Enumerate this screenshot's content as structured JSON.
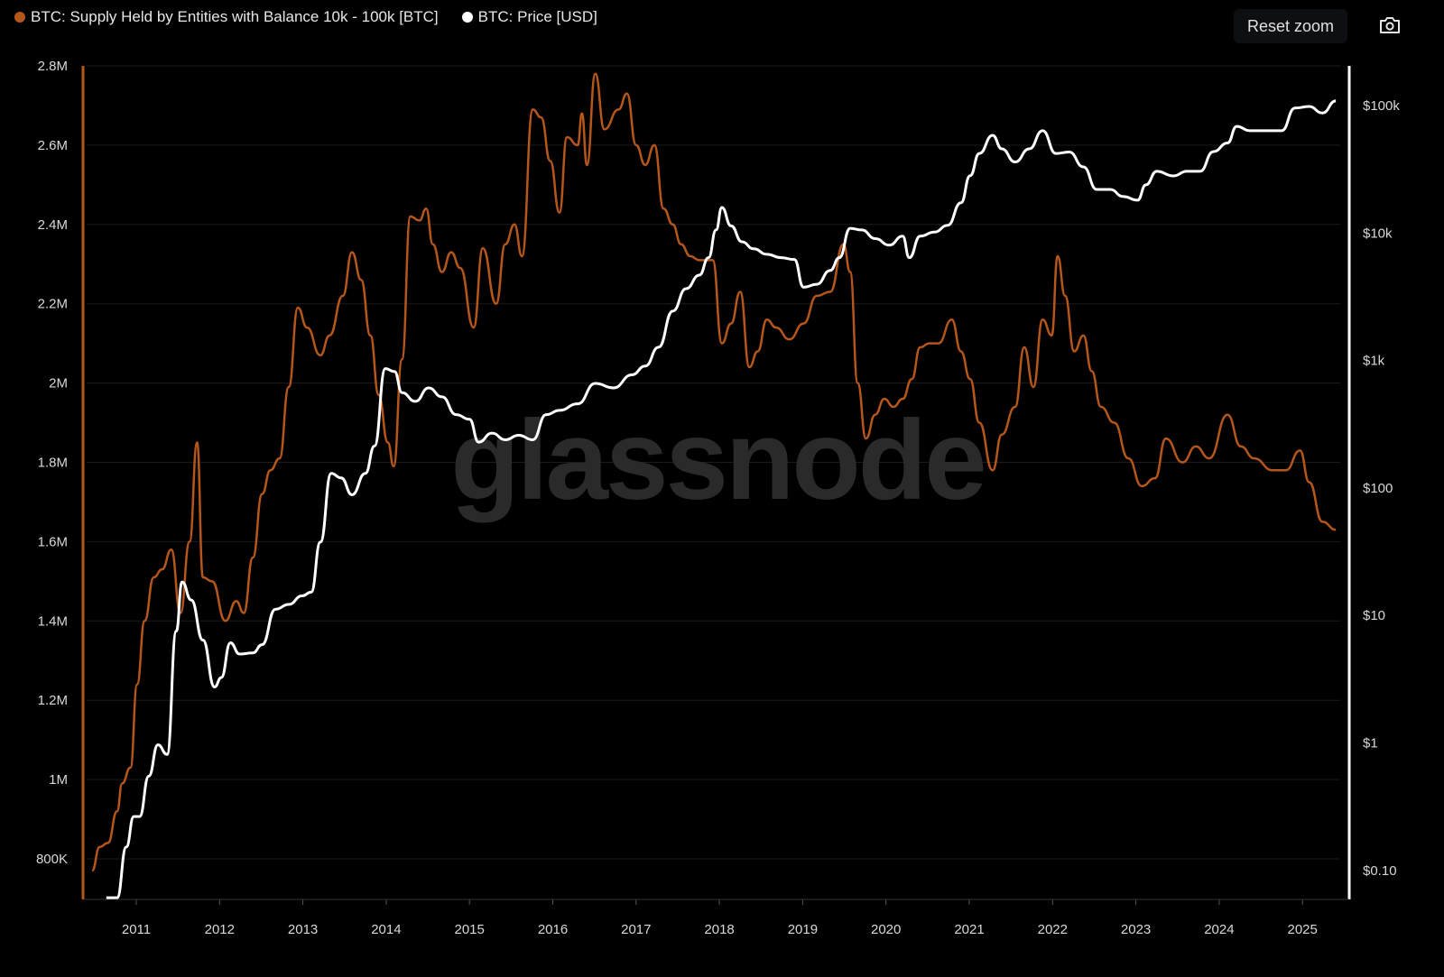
{
  "legend": [
    {
      "label": "BTC: Supply Held by Entities with Balance 10k - 100k [BTC]",
      "color": "#b5561a"
    },
    {
      "label": "BTC: Price [USD]",
      "color": "#ffffff"
    }
  ],
  "toolbar": {
    "reset_zoom_label": "Reset zoom",
    "camera_icon": "camera-icon"
  },
  "watermark": "glassnode",
  "chart_data": {
    "type": "line",
    "grid": true,
    "legend_placement": "top-left",
    "x_ticks": [
      "2011",
      "2012",
      "2013",
      "2014",
      "2015",
      "2016",
      "2017",
      "2018",
      "2019",
      "2020",
      "2021",
      "2022",
      "2023",
      "2024",
      "2025"
    ],
    "xlim": [
      2010.45,
      2025.45
    ],
    "left_axis": {
      "scale": "linear",
      "ylim": [
        700000,
        2820000
      ],
      "ticks": [
        800000,
        1000000,
        1200000,
        1400000,
        1600000,
        1800000,
        2000000,
        2200000,
        2400000,
        2600000,
        2800000
      ],
      "tick_labels": [
        "800K",
        "1M",
        "1.2M",
        "1.4M",
        "1.6M",
        "1.8M",
        "2M",
        "2.2M",
        "2.4M",
        "2.6M",
        "2.8M"
      ]
    },
    "right_axis": {
      "scale": "log",
      "ticks": [
        0.1,
        1,
        10,
        100,
        1000,
        10000,
        100000
      ],
      "tick_labels": [
        "$0.10",
        "$1",
        "$10",
        "$100",
        "$1k",
        "$10k",
        "$100k"
      ]
    },
    "series": [
      {
        "name": "BTC: Supply Held by Entities with Balance 10k - 100k [BTC]",
        "axis": "left",
        "color": "#b5561a",
        "points": [
          [
            2010.47,
            770000
          ],
          [
            2010.56,
            830000
          ],
          [
            2010.66,
            840000
          ],
          [
            2010.77,
            920000
          ],
          [
            2010.83,
            990000
          ],
          [
            2010.93,
            1030000
          ],
          [
            2011.01,
            1240000
          ],
          [
            2011.1,
            1400000
          ],
          [
            2011.21,
            1510000
          ],
          [
            2011.31,
            1530000
          ],
          [
            2011.42,
            1580000
          ],
          [
            2011.53,
            1420000
          ],
          [
            2011.64,
            1600000
          ],
          [
            2011.73,
            1850000
          ],
          [
            2011.8,
            1510000
          ],
          [
            2011.91,
            1500000
          ],
          [
            2012.07,
            1400000
          ],
          [
            2012.2,
            1450000
          ],
          [
            2012.29,
            1420000
          ],
          [
            2012.4,
            1560000
          ],
          [
            2012.51,
            1720000
          ],
          [
            2012.61,
            1780000
          ],
          [
            2012.72,
            1810000
          ],
          [
            2012.83,
            1990000
          ],
          [
            2012.94,
            2190000
          ],
          [
            2013.05,
            2140000
          ],
          [
            2013.21,
            2070000
          ],
          [
            2013.32,
            2120000
          ],
          [
            2013.48,
            2220000
          ],
          [
            2013.59,
            2330000
          ],
          [
            2013.7,
            2260000
          ],
          [
            2013.81,
            2120000
          ],
          [
            2013.91,
            1970000
          ],
          [
            2014.02,
            1850000
          ],
          [
            2014.09,
            1790000
          ],
          [
            2014.19,
            2060000
          ],
          [
            2014.29,
            2420000
          ],
          [
            2014.4,
            2410000
          ],
          [
            2014.48,
            2440000
          ],
          [
            2014.56,
            2350000
          ],
          [
            2014.67,
            2280000
          ],
          [
            2014.78,
            2330000
          ],
          [
            2014.89,
            2290000
          ],
          [
            2015.05,
            2140000
          ],
          [
            2015.16,
            2340000
          ],
          [
            2015.32,
            2200000
          ],
          [
            2015.43,
            2350000
          ],
          [
            2015.54,
            2400000
          ],
          [
            2015.63,
            2320000
          ],
          [
            2015.76,
            2690000
          ],
          [
            2015.86,
            2670000
          ],
          [
            2015.97,
            2560000
          ],
          [
            2016.08,
            2430000
          ],
          [
            2016.17,
            2620000
          ],
          [
            2016.3,
            2600000
          ],
          [
            2016.35,
            2680000
          ],
          [
            2016.41,
            2550000
          ],
          [
            2016.51,
            2780000
          ],
          [
            2016.62,
            2640000
          ],
          [
            2016.79,
            2690000
          ],
          [
            2016.89,
            2730000
          ],
          [
            2017.0,
            2600000
          ],
          [
            2017.11,
            2550000
          ],
          [
            2017.22,
            2600000
          ],
          [
            2017.33,
            2440000
          ],
          [
            2017.44,
            2400000
          ],
          [
            2017.54,
            2350000
          ],
          [
            2017.65,
            2320000
          ],
          [
            2017.76,
            2310000
          ],
          [
            2017.92,
            2310000
          ],
          [
            2018.03,
            2100000
          ],
          [
            2018.14,
            2150000
          ],
          [
            2018.25,
            2230000
          ],
          [
            2018.36,
            2040000
          ],
          [
            2018.46,
            2080000
          ],
          [
            2018.57,
            2160000
          ],
          [
            2018.68,
            2140000
          ],
          [
            2018.84,
            2110000
          ],
          [
            2019.01,
            2150000
          ],
          [
            2019.17,
            2220000
          ],
          [
            2019.33,
            2230000
          ],
          [
            2019.49,
            2350000
          ],
          [
            2019.57,
            2280000
          ],
          [
            2019.66,
            2000000
          ],
          [
            2019.76,
            1860000
          ],
          [
            2019.87,
            1920000
          ],
          [
            2019.98,
            1960000
          ],
          [
            2020.09,
            1940000
          ],
          [
            2020.2,
            1960000
          ],
          [
            2020.31,
            2010000
          ],
          [
            2020.41,
            2090000
          ],
          [
            2020.52,
            2100000
          ],
          [
            2020.63,
            2100000
          ],
          [
            2020.79,
            2160000
          ],
          [
            2020.9,
            2080000
          ],
          [
            2021.01,
            2010000
          ],
          [
            2021.12,
            1900000
          ],
          [
            2021.28,
            1780000
          ],
          [
            2021.39,
            1870000
          ],
          [
            2021.55,
            1940000
          ],
          [
            2021.66,
            2090000
          ],
          [
            2021.77,
            1990000
          ],
          [
            2021.88,
            2160000
          ],
          [
            2021.99,
            2120000
          ],
          [
            2022.06,
            2320000
          ],
          [
            2022.15,
            2220000
          ],
          [
            2022.26,
            2080000
          ],
          [
            2022.37,
            2120000
          ],
          [
            2022.47,
            2030000
          ],
          [
            2022.58,
            1940000
          ],
          [
            2022.74,
            1900000
          ],
          [
            2022.91,
            1810000
          ],
          [
            2023.07,
            1740000
          ],
          [
            2023.23,
            1760000
          ],
          [
            2023.36,
            1860000
          ],
          [
            2023.56,
            1800000
          ],
          [
            2023.72,
            1840000
          ],
          [
            2023.88,
            1810000
          ],
          [
            2024.1,
            1920000
          ],
          [
            2024.26,
            1840000
          ],
          [
            2024.42,
            1810000
          ],
          [
            2024.64,
            1780000
          ],
          [
            2024.8,
            1780000
          ],
          [
            2024.97,
            1830000
          ],
          [
            2025.08,
            1750000
          ],
          [
            2025.24,
            1650000
          ],
          [
            2025.4,
            1630000
          ]
        ]
      },
      {
        "name": "BTC: Price [USD]",
        "axis": "right",
        "color": "#ffffff",
        "points": [
          [
            2010.64,
            0.06
          ],
          [
            2010.77,
            0.06
          ],
          [
            2010.88,
            0.15
          ],
          [
            2010.97,
            0.26
          ],
          [
            2011.04,
            0.26
          ],
          [
            2011.15,
            0.54
          ],
          [
            2011.26,
            0.95
          ],
          [
            2011.37,
            0.8
          ],
          [
            2011.48,
            7.4
          ],
          [
            2011.55,
            18
          ],
          [
            2011.66,
            13
          ],
          [
            2011.8,
            6.3
          ],
          [
            2011.94,
            2.7
          ],
          [
            2012.02,
            3.2
          ],
          [
            2012.13,
            6
          ],
          [
            2012.24,
            4.9
          ],
          [
            2012.4,
            5
          ],
          [
            2012.51,
            5.8
          ],
          [
            2012.67,
            11
          ],
          [
            2012.83,
            12
          ],
          [
            2012.99,
            14
          ],
          [
            2013.1,
            15
          ],
          [
            2013.21,
            37
          ],
          [
            2013.34,
            128
          ],
          [
            2013.46,
            118
          ],
          [
            2013.59,
            87
          ],
          [
            2013.75,
            128
          ],
          [
            2013.86,
            210
          ],
          [
            2013.99,
            850
          ],
          [
            2014.1,
            805
          ],
          [
            2014.19,
            550
          ],
          [
            2014.35,
            470
          ],
          [
            2014.51,
            600
          ],
          [
            2014.67,
            510
          ],
          [
            2014.84,
            370
          ],
          [
            2015.0,
            340
          ],
          [
            2015.11,
            225
          ],
          [
            2015.27,
            265
          ],
          [
            2015.43,
            235
          ],
          [
            2015.59,
            255
          ],
          [
            2015.76,
            235
          ],
          [
            2015.92,
            370
          ],
          [
            2016.08,
            400
          ],
          [
            2016.3,
            450
          ],
          [
            2016.51,
            650
          ],
          [
            2016.73,
            600
          ],
          [
            2016.95,
            760
          ],
          [
            2017.11,
            890
          ],
          [
            2017.27,
            1250
          ],
          [
            2017.44,
            2400
          ],
          [
            2017.6,
            3600
          ],
          [
            2017.76,
            4600
          ],
          [
            2017.87,
            6300
          ],
          [
            2017.96,
            10400
          ],
          [
            2018.03,
            15600
          ],
          [
            2018.14,
            11200
          ],
          [
            2018.27,
            8400
          ],
          [
            2018.41,
            7400
          ],
          [
            2018.57,
            6700
          ],
          [
            2018.74,
            6300
          ],
          [
            2018.9,
            6100
          ],
          [
            2019.01,
            3700
          ],
          [
            2019.17,
            3900
          ],
          [
            2019.33,
            5000
          ],
          [
            2019.44,
            6300
          ],
          [
            2019.57,
            10700
          ],
          [
            2019.71,
            10400
          ],
          [
            2019.87,
            8900
          ],
          [
            2020.04,
            7900
          ],
          [
            2020.2,
            9300
          ],
          [
            2020.28,
            6300
          ],
          [
            2020.41,
            9300
          ],
          [
            2020.58,
            10000
          ],
          [
            2020.74,
            11300
          ],
          [
            2020.9,
            17000
          ],
          [
            2021.01,
            27700
          ],
          [
            2021.12,
            41400
          ],
          [
            2021.28,
            57500
          ],
          [
            2021.39,
            45000
          ],
          [
            2021.55,
            35500
          ],
          [
            2021.72,
            45000
          ],
          [
            2021.88,
            62500
          ],
          [
            2022.04,
            41400
          ],
          [
            2022.2,
            42500
          ],
          [
            2022.37,
            32500
          ],
          [
            2022.53,
            21600
          ],
          [
            2022.69,
            21600
          ],
          [
            2022.85,
            19000
          ],
          [
            2023.02,
            17800
          ],
          [
            2023.12,
            23500
          ],
          [
            2023.25,
            30000
          ],
          [
            2023.45,
            27600
          ],
          [
            2023.61,
            30000
          ],
          [
            2023.77,
            30000
          ],
          [
            2023.93,
            42800
          ],
          [
            2024.1,
            50000
          ],
          [
            2024.21,
            67500
          ],
          [
            2024.37,
            62500
          ],
          [
            2024.53,
            62500
          ],
          [
            2024.75,
            62500
          ],
          [
            2024.91,
            94000
          ],
          [
            2025.08,
            96700
          ],
          [
            2025.24,
            86000
          ],
          [
            2025.4,
            107000
          ]
        ]
      }
    ]
  }
}
